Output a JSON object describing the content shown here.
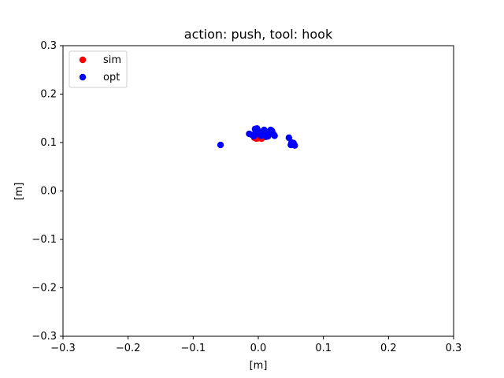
{
  "chart_data": {
    "type": "scatter",
    "title": "action: push, tool: hook",
    "xlabel": "[m]",
    "ylabel": "[m]",
    "xlim": [
      -0.3,
      0.3
    ],
    "ylim": [
      -0.3,
      0.3
    ],
    "xticks": [
      -0.3,
      -0.2,
      -0.1,
      0.0,
      0.1,
      0.2,
      0.3
    ],
    "xtick_labels": [
      "−0.3",
      "−0.2",
      "−0.1",
      "0.0",
      "0.1",
      "0.2",
      "0.3"
    ],
    "yticks": [
      -0.3,
      -0.2,
      -0.1,
      0.0,
      0.1,
      0.2,
      0.3
    ],
    "ytick_labels": [
      "−0.3",
      "−0.2",
      "−0.1",
      "0.0",
      "0.1",
      "0.2",
      "0.3"
    ],
    "grid": false,
    "legend_position": "top-left",
    "series": [
      {
        "name": "sim",
        "color": "#ff0000",
        "points": [
          [
            -0.006,
            0.11
          ],
          [
            -0.004,
            0.112
          ],
          [
            -0.002,
            0.113
          ],
          [
            0.0,
            0.114
          ],
          [
            0.002,
            0.112
          ],
          [
            0.004,
            0.11
          ],
          [
            0.006,
            0.111
          ],
          [
            0.008,
            0.113
          ],
          [
            -0.003,
            0.108
          ],
          [
            0.001,
            0.109
          ],
          [
            0.005,
            0.108
          ],
          [
            0.01,
            0.112
          ],
          [
            0.013,
            0.113
          ],
          [
            -0.007,
            0.114
          ],
          [
            0.003,
            0.116
          ]
        ]
      },
      {
        "name": "opt",
        "color": "#0000ff",
        "points": [
          [
            -0.058,
            0.095
          ],
          [
            -0.014,
            0.118
          ],
          [
            -0.01,
            0.116
          ],
          [
            -0.005,
            0.128
          ],
          [
            -0.002,
            0.129
          ],
          [
            0.0,
            0.124
          ],
          [
            -0.003,
            0.12
          ],
          [
            0.001,
            0.117
          ],
          [
            0.004,
            0.114
          ],
          [
            0.006,
            0.116
          ],
          [
            0.009,
            0.126
          ],
          [
            0.011,
            0.121
          ],
          [
            0.013,
            0.117
          ],
          [
            0.015,
            0.113
          ],
          [
            0.017,
            0.121
          ],
          [
            0.019,
            0.126
          ],
          [
            0.021,
            0.124
          ],
          [
            0.023,
            0.118
          ],
          [
            0.025,
            0.114
          ],
          [
            0.012,
            0.112
          ],
          [
            0.007,
            0.119
          ],
          [
            -0.007,
            0.113
          ],
          [
            0.047,
            0.11
          ],
          [
            0.051,
            0.1
          ],
          [
            0.053,
            0.096
          ],
          [
            0.056,
            0.094
          ],
          [
            0.05,
            0.095
          ],
          [
            0.054,
            0.099
          ]
        ]
      }
    ]
  }
}
